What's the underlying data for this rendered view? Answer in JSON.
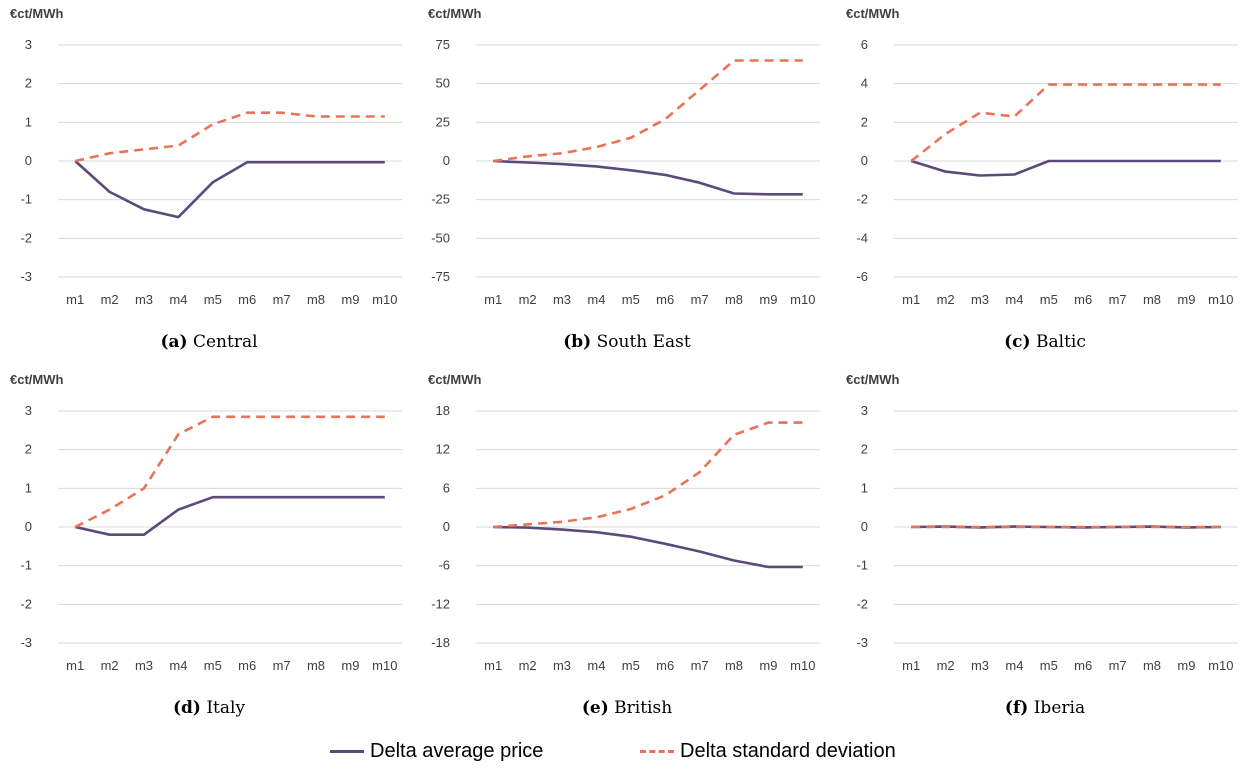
{
  "legend": {
    "series": [
      {
        "name": "Delta average price",
        "color": "#5b4a7a",
        "style": "solid"
      },
      {
        "name": "Delta standard deviation",
        "color": "#e8735a",
        "style": "dashed"
      }
    ]
  },
  "colors": {
    "avg": "#5b4a7a",
    "std": "#e8735a",
    "grid": "#d9d9d9",
    "tick_text": "#404040"
  },
  "chart_data": [
    {
      "type": "line",
      "unit_label": "€ct/MWh",
      "caption_tag": "(a)",
      "caption_text": "Central",
      "categories": [
        "m1",
        "m2",
        "m3",
        "m4",
        "m5",
        "m6",
        "m7",
        "m8",
        "m9",
        "m10"
      ],
      "yticks": [
        3,
        2,
        1,
        0,
        -1,
        -2,
        -3
      ],
      "ylim": [
        -3,
        3
      ],
      "series": [
        {
          "name": "Delta average price",
          "values": [
            0,
            -0.8,
            -1.25,
            -1.45,
            -0.55,
            -0.03,
            -0.03,
            -0.03,
            -0.03,
            -0.03
          ]
        },
        {
          "name": "Delta standard deviation",
          "values": [
            0,
            0.2,
            0.3,
            0.4,
            0.95,
            1.25,
            1.25,
            1.15,
            1.15,
            1.15
          ]
        }
      ]
    },
    {
      "type": "line",
      "unit_label": "€ct/MWh",
      "caption_tag": "(b)",
      "caption_text": "South East",
      "categories": [
        "m1",
        "m2",
        "m3",
        "m4",
        "m5",
        "m6",
        "m7",
        "m8",
        "m9",
        "m10"
      ],
      "yticks": [
        75,
        50,
        25,
        0,
        -25,
        -50,
        -75
      ],
      "ylim": [
        -75,
        75
      ],
      "series": [
        {
          "name": "Delta average price",
          "values": [
            0,
            -1,
            -2,
            -3.5,
            -6,
            -9,
            -14,
            -21,
            -21.5,
            -21.5
          ]
        },
        {
          "name": "Delta standard deviation",
          "values": [
            0,
            3,
            5,
            9,
            15,
            27,
            46,
            65,
            65,
            65
          ]
        }
      ]
    },
    {
      "type": "line",
      "unit_label": "€ct/MWh",
      "caption_tag": "(c)",
      "caption_text": "Baltic",
      "categories": [
        "m1",
        "m2",
        "m3",
        "m4",
        "m5",
        "m6",
        "m7",
        "m8",
        "m9",
        "m10"
      ],
      "yticks": [
        6,
        4,
        2,
        0,
        -2,
        -4,
        -6
      ],
      "ylim": [
        -6,
        6
      ],
      "series": [
        {
          "name": "Delta average price",
          "values": [
            0,
            -0.55,
            -0.75,
            -0.7,
            0,
            0,
            0,
            0,
            0,
            0
          ]
        },
        {
          "name": "Delta standard deviation",
          "values": [
            0,
            1.4,
            2.5,
            2.3,
            3.95,
            3.95,
            3.95,
            3.95,
            3.95,
            3.95
          ]
        }
      ]
    },
    {
      "type": "line",
      "unit_label": "€ct/MWh",
      "caption_tag": "(d)",
      "caption_text": "Italy",
      "categories": [
        "m1",
        "m2",
        "m3",
        "m4",
        "m5",
        "m6",
        "m7",
        "m8",
        "m9",
        "m10"
      ],
      "yticks": [
        3,
        2,
        1,
        0,
        -1,
        -2,
        -3
      ],
      "ylim": [
        -3,
        3
      ],
      "series": [
        {
          "name": "Delta average price",
          "values": [
            0,
            -0.2,
            -0.2,
            0.45,
            0.77,
            0.77,
            0.77,
            0.77,
            0.77,
            0.77
          ]
        },
        {
          "name": "Delta standard deviation",
          "values": [
            0,
            0.45,
            1.0,
            2.4,
            2.85,
            2.85,
            2.85,
            2.85,
            2.85,
            2.85
          ]
        }
      ]
    },
    {
      "type": "line",
      "unit_label": "€ct/MWh",
      "caption_tag": "(e)",
      "caption_text": "British",
      "categories": [
        "m1",
        "m2",
        "m3",
        "m4",
        "m5",
        "m6",
        "m7",
        "m8",
        "m9",
        "m10"
      ],
      "yticks": [
        18,
        12,
        6,
        0,
        -6,
        -12,
        -18
      ],
      "ylim": [
        -18,
        18
      ],
      "series": [
        {
          "name": "Delta average price",
          "values": [
            0,
            -0.1,
            -0.4,
            -0.8,
            -1.5,
            -2.6,
            -3.8,
            -5.2,
            -6.2,
            -6.2
          ]
        },
        {
          "name": "Delta standard deviation",
          "values": [
            0,
            0.4,
            0.8,
            1.5,
            2.8,
            4.9,
            8.5,
            14.3,
            16.2,
            16.2
          ]
        }
      ]
    },
    {
      "type": "line",
      "unit_label": "€ct/MWh",
      "caption_tag": "(f)",
      "caption_text": "Iberia",
      "categories": [
        "m1",
        "m2",
        "m3",
        "m4",
        "m5",
        "m6",
        "m7",
        "m8",
        "m9",
        "m10"
      ],
      "yticks": [
        3,
        2,
        1,
        0,
        -1,
        -2,
        -3
      ],
      "ylim": [
        -3,
        3
      ],
      "series": [
        {
          "name": "Delta average price",
          "values": [
            0,
            0.01,
            -0.01,
            0.01,
            0,
            -0.01,
            0,
            0.01,
            -0.01,
            0
          ]
        },
        {
          "name": "Delta standard deviation",
          "values": [
            0,
            0,
            0,
            0,
            0,
            0,
            0,
            0,
            0,
            0
          ]
        }
      ]
    }
  ]
}
